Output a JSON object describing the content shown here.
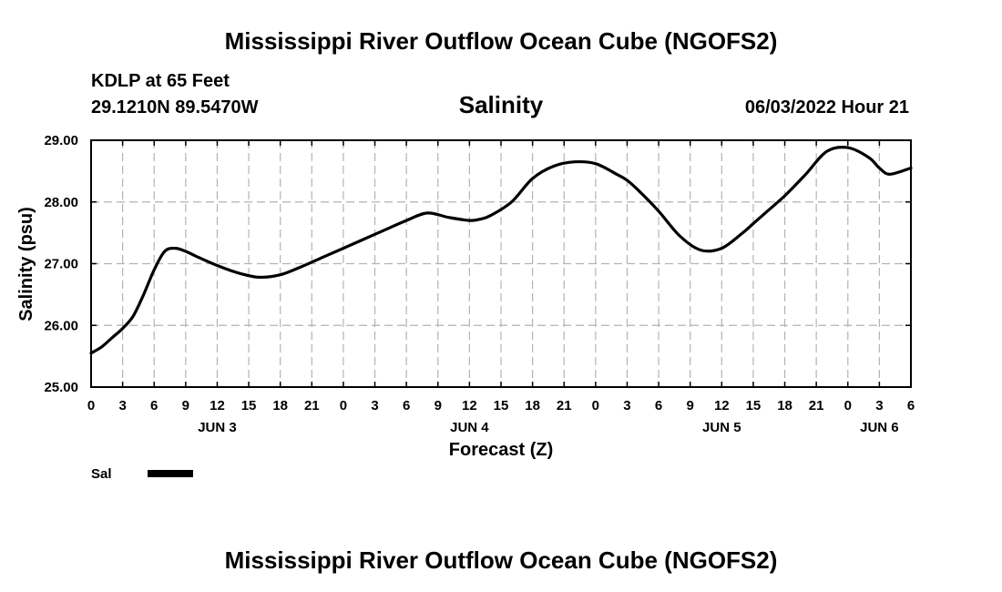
{
  "page": {
    "title": "Mississippi River Outflow Ocean Cube (NGOFS2)",
    "footer_title": "Mississippi River Outflow Ocean Cube (NGOFS2)",
    "station": "KDLP at 65 Feet",
    "coords": "29.1210N  89.5470W",
    "timestamp": "06/03/2022 Hour 21"
  },
  "chart_data": {
    "type": "line",
    "title": "Salinity",
    "xlabel": "Forecast (Z)",
    "ylabel": "Salinity (psu)",
    "ylim": [
      25.0,
      29.0
    ],
    "xlim": [
      0,
      78
    ],
    "grid": true,
    "y_ticks": [
      "25.00",
      "26.00",
      "27.00",
      "28.00",
      "29.00"
    ],
    "x_ticks": [
      "0",
      "3",
      "6",
      "9",
      "12",
      "15",
      "18",
      "21",
      "0",
      "3",
      "6",
      "9",
      "12",
      "15",
      "18",
      "21",
      "0",
      "3",
      "6",
      "9",
      "12",
      "15",
      "18",
      "21",
      "0",
      "3",
      "6"
    ],
    "date_labels": [
      {
        "label": "JUN 3",
        "at_hour": 12
      },
      {
        "label": "JUN 4",
        "at_hour": 36
      },
      {
        "label": "JUN 5",
        "at_hour": 60
      },
      {
        "label": "JUN 6",
        "at_hour": 75
      }
    ],
    "legend": [
      {
        "name": "Sal",
        "color": "#000000"
      }
    ],
    "series": [
      {
        "name": "Sal",
        "color": "#000000",
        "x": [
          0,
          1,
          2,
          3,
          4,
          5,
          6,
          7,
          8,
          9,
          10,
          12,
          14,
          16,
          18,
          20,
          22,
          24,
          26,
          28,
          30,
          32,
          34,
          36,
          37,
          38,
          40,
          42,
          44,
          46,
          48,
          50,
          51,
          52,
          54,
          56,
          58,
          60,
          62,
          63,
          64,
          66,
          68,
          70,
          72,
          74,
          75,
          76,
          78
        ],
        "values": [
          25.55,
          25.65,
          25.8,
          25.95,
          26.15,
          26.5,
          26.9,
          27.2,
          27.25,
          27.2,
          27.12,
          26.97,
          26.85,
          26.78,
          26.82,
          26.95,
          27.1,
          27.25,
          27.4,
          27.55,
          27.7,
          27.82,
          27.75,
          27.7,
          27.72,
          27.78,
          28.0,
          28.38,
          28.58,
          28.65,
          28.62,
          28.45,
          28.35,
          28.2,
          27.85,
          27.45,
          27.22,
          27.25,
          27.5,
          27.65,
          27.8,
          28.1,
          28.45,
          28.82,
          28.88,
          28.72,
          28.55,
          28.45,
          28.55
        ]
      }
    ]
  }
}
